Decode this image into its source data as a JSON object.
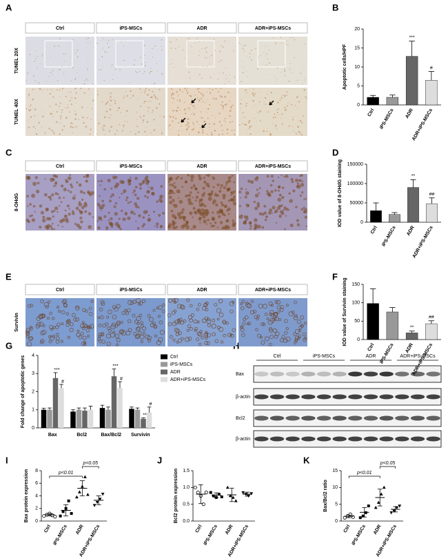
{
  "panel_letters": [
    "A",
    "B",
    "C",
    "D",
    "E",
    "F",
    "G",
    "H",
    "I",
    "J",
    "K"
  ],
  "micrographs": {
    "groups": [
      "Ctrl",
      "iPS-MSCs",
      "ADR",
      "ADR+iPS-MSCs"
    ],
    "rows": [
      "TUNEL 20X",
      "TUNEL 40X",
      "8-OHdG",
      "Survivin"
    ]
  },
  "blot": {
    "groups": [
      "Ctrl",
      "iPS-MSCs",
      "ADR",
      "ADR+iPS-MSCs"
    ],
    "rows": [
      "Bax",
      "β-actin",
      "Bcl2",
      "β-actin"
    ]
  },
  "chart_data": [
    {
      "type": "bar",
      "ylabel": "Apoptotic cells/HPF",
      "categories": [
        "Ctrl",
        "iPS-MSCs",
        "ADR",
        "ADR+iPS-MSCs"
      ],
      "values": [
        2,
        2,
        12.8,
        6.5
      ],
      "errors": [
        0.5,
        0.6,
        4,
        2.3
      ],
      "colors": [
        "#000000",
        "#999999",
        "#666666",
        "#dddddd"
      ],
      "significance": [
        null,
        null,
        "***",
        "#"
      ],
      "ylim": [
        0,
        20
      ],
      "yticks": [
        0,
        5,
        10,
        15,
        20
      ]
    },
    {
      "type": "bar",
      "ylabel": "IOD value of 8-OHdG staining",
      "categories": [
        "Ctrl",
        "iPS-MSCs",
        "ADR",
        "ADR+iPS-MSCs"
      ],
      "values": [
        30000,
        20000,
        90000,
        48000
      ],
      "errors": [
        20000,
        5000,
        20000,
        15000
      ],
      "colors": [
        "#000000",
        "#999999",
        "#666666",
        "#dddddd"
      ],
      "significance": [
        null,
        null,
        "**",
        "##"
      ],
      "ylim": [
        0,
        150000
      ],
      "yticks": [
        0,
        50000,
        100000,
        150000
      ]
    },
    {
      "type": "bar",
      "ylabel": "IOD value of Survivin staining",
      "categories": [
        "Ctrl",
        "iPS-MSCs",
        "ADR",
        "ADR+iPS-MSCs"
      ],
      "values": [
        98,
        75,
        18,
        43
      ],
      "errors": [
        40,
        12,
        5,
        8
      ],
      "colors": [
        "#000000",
        "#999999",
        "#666666",
        "#dddddd"
      ],
      "significance": [
        null,
        null,
        "**",
        "##"
      ],
      "ylim": [
        0,
        150
      ],
      "yticks": [
        0,
        50,
        100,
        150
      ]
    },
    {
      "type": "grouped_bar",
      "ylabel": "Fold change of apoptotic genes",
      "categories": [
        "Bax",
        "Bcl2",
        "Bax/Bcl2",
        "Survivin"
      ],
      "series": [
        {
          "name": "Ctrl",
          "color": "#000000",
          "values": [
            1,
            0.9,
            1.1,
            1.05
          ],
          "errors": [
            0.08,
            0.1,
            0.15,
            0.1
          ],
          "significance": [
            null,
            null,
            null,
            null
          ]
        },
        {
          "name": "iPS-MSCs",
          "color": "#999999",
          "values": [
            1,
            1,
            1,
            1
          ],
          "errors": [
            0.1,
            0.1,
            0.15,
            0.1
          ],
          "significance": [
            null,
            null,
            null,
            null
          ]
        },
        {
          "name": "ADR",
          "color": "#666666",
          "values": [
            2.75,
            0.95,
            2.85,
            0.5
          ],
          "errors": [
            0.3,
            0.15,
            0.4,
            0.05
          ],
          "significance": [
            "***",
            null,
            "***",
            "**"
          ]
        },
        {
          "name": "ADR+iPS-MSCs",
          "color": "#dddddd",
          "values": [
            2.2,
            1,
            2.2,
            0.85
          ],
          "errors": [
            0.2,
            0.2,
            0.35,
            0.3
          ],
          "significance": [
            "#",
            null,
            "#",
            "#"
          ]
        }
      ],
      "legend": "right",
      "ylim": [
        0,
        4
      ],
      "yticks": [
        0,
        1,
        2,
        3,
        4
      ]
    },
    {
      "type": "dot_plot",
      "ylabel": "Bax protein expression",
      "categories": [
        "Ctrl",
        "iPS-MSCs",
        "ADR",
        "ADR+iPS-MSCs"
      ],
      "points": [
        [
          0.8,
          1.0,
          1.2,
          0.9,
          0.7
        ],
        [
          0.8,
          1.5,
          2.0,
          3.2,
          1.2
        ],
        [
          3.8,
          4.6,
          5.5,
          7.0,
          4.2
        ],
        [
          2.5,
          3.0,
          3.5,
          4.3
        ]
      ],
      "means": [
        1.0,
        1.7,
        5.2,
        3.3
      ],
      "errors": [
        0.2,
        0.9,
        1.2,
        0.7
      ],
      "markers": [
        "circle",
        "square",
        "triangle",
        "triangle-down"
      ],
      "annotations": [
        "p<0.01",
        "p<0.05"
      ],
      "ylim": [
        0,
        8
      ],
      "yticks": [
        0,
        2,
        4,
        6,
        8
      ]
    },
    {
      "type": "dot_plot",
      "ylabel": "Bcl2 protein expression",
      "categories": [
        "Ctrl",
        "iPS-MSCs",
        "ADR",
        "ADR+iPS-MSCs"
      ],
      "points": [
        [
          1.0,
          0.85,
          0.75,
          0.5,
          0.85
        ],
        [
          0.85,
          0.75,
          0.7,
          0.8,
          0.72
        ],
        [
          1.0,
          0.75,
          0.7,
          0.6
        ],
        [
          0.85,
          0.8,
          0.75,
          0.82
        ]
      ],
      "means": [
        0.8,
        0.77,
        0.78,
        0.8
      ],
      "errors": [
        0.28,
        0.07,
        0.2,
        0.06
      ],
      "markers": [
        "circle",
        "square",
        "triangle",
        "triangle-down"
      ],
      "ylim": [
        0,
        1.5
      ],
      "yticks": [
        {
          "value": 0,
          "label": "0.0"
        },
        0.5,
        {
          "value": 1,
          "label": "1.0"
        },
        1.5
      ]
    },
    {
      "type": "dot_plot",
      "ylabel": "Bax/Bcl2 ratio",
      "categories": [
        "Ctrl",
        "iPS-MSCs",
        "ADR",
        "ADR+iPS-MSCs"
      ],
      "points": [
        [
          1.0,
          1.5,
          2.0,
          1.2
        ],
        [
          1.0,
          1.5,
          2.5,
          4.5
        ],
        [
          4.0,
          5.5,
          8.0,
          10.0
        ],
        [
          2.5,
          3.0,
          4.0,
          4.5
        ]
      ],
      "means": [
        1.4,
        2.6,
        7,
        3.5
      ],
      "errors": [
        0.4,
        1.4,
        2.5,
        0.8
      ],
      "markers": [
        "circle",
        "square",
        "triangle",
        "triangle-down"
      ],
      "annotations": [
        "p<0.01",
        "p<0.05"
      ],
      "ylim": [
        0,
        15
      ],
      "yticks": [
        0,
        5,
        10,
        15
      ]
    }
  ]
}
